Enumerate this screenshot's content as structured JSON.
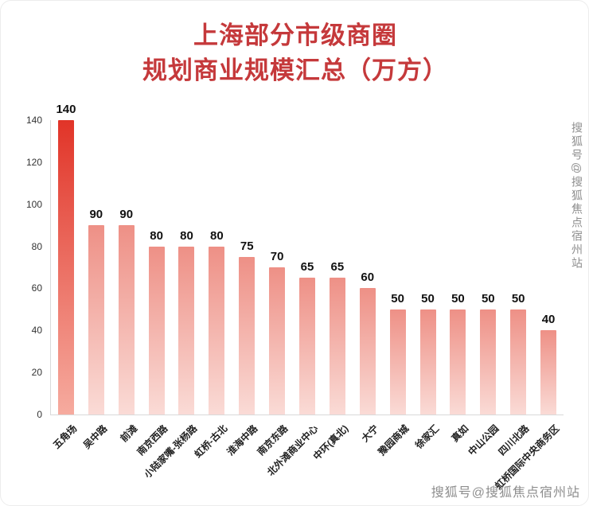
{
  "title": {
    "line1": "上海部分市级商圈",
    "line2": "规划商业规模汇总（万方）"
  },
  "watermark": {
    "side": "搜狐号@搜狐焦点宿州站",
    "bottom": "搜狐号@搜狐焦点宿州站"
  },
  "chart_data": {
    "type": "bar",
    "title": "上海部分市级商圈 规划商业规模汇总（万方）",
    "categories": [
      "五角场",
      "吴中路",
      "前滩",
      "南京西路",
      "小陆家嘴-张杨路",
      "虹桥-古北",
      "淮海中路",
      "南京东路",
      "北外滩商业中心",
      "中环(真北)",
      "大宁",
      "豫园商城",
      "徐家汇",
      "真如",
      "中山公园",
      "四川北路",
      "虹桥国际中央商务区"
    ],
    "values": [
      140,
      90,
      90,
      80,
      80,
      80,
      75,
      70,
      65,
      65,
      60,
      50,
      50,
      50,
      50,
      50,
      40
    ],
    "xlabel": "",
    "ylabel": "",
    "ylim": [
      0,
      140
    ],
    "yticks": [
      0,
      20,
      40,
      60,
      80,
      100,
      120,
      140
    ],
    "grid": false,
    "legend": null,
    "colors": {
      "title": "#c5393b",
      "highlight_index": 0,
      "highlight_top": "#e13428",
      "highlight_bottom": "#f6ab9f",
      "normal_top": "#ee9086",
      "normal_bottom": "#fadbd6",
      "axis": "#d9d9d9",
      "value_label": "#111111",
      "watermark": "#8e8e8e"
    }
  }
}
